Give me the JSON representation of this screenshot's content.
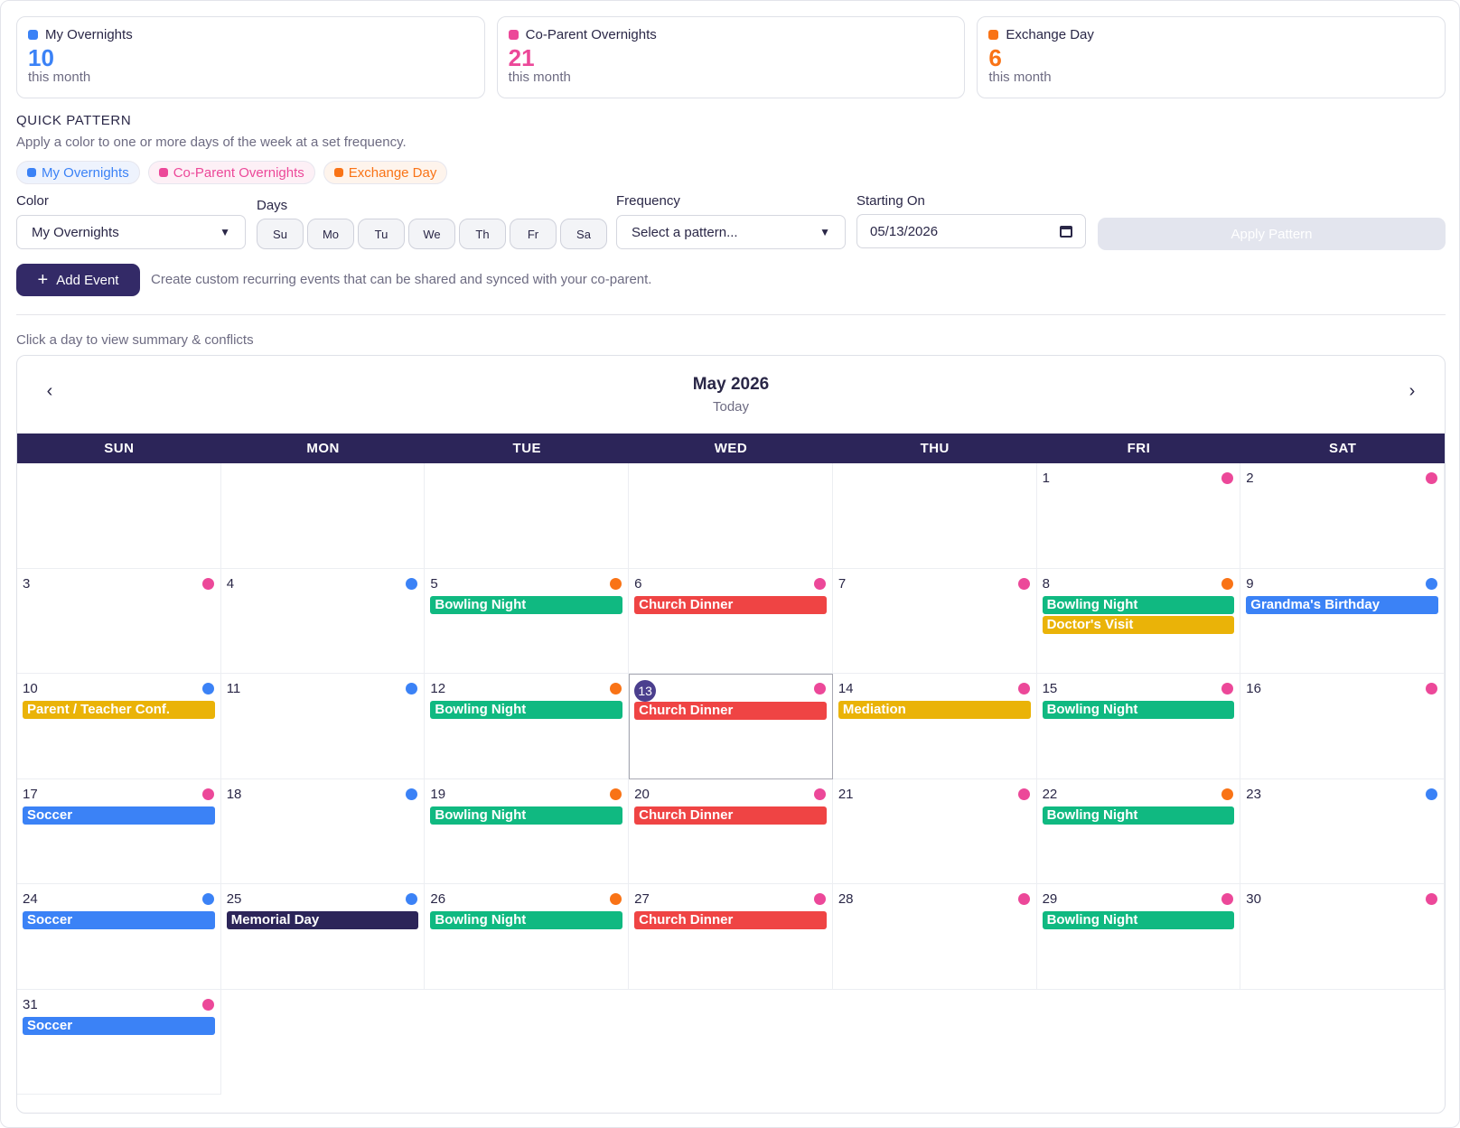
{
  "colors": {
    "my": "#3b82f6",
    "coparent": "#ec4899",
    "exchange": "#f97316",
    "bowling": "#10b981",
    "church": "#ef4444",
    "yellow": "#eab308",
    "navy": "#2c2559"
  },
  "stats": [
    {
      "label": "My Overnights",
      "value": "10",
      "sub": "this month",
      "color": "#3b82f6"
    },
    {
      "label": "Co-Parent Overnights",
      "value": "21",
      "sub": "this month",
      "color": "#ec4899"
    },
    {
      "label": "Exchange Day",
      "value": "6",
      "sub": "this month",
      "color": "#f97316"
    }
  ],
  "quick_pattern": {
    "title": "QUICK PATTERN",
    "description": "Apply a color to one or more days of the week at a set frequency.",
    "chips": [
      {
        "label": "My Overnights",
        "color": "#3b82f6",
        "bg": "#eef3fd"
      },
      {
        "label": "Co-Parent Overnights",
        "color": "#ec4899",
        "bg": "#fdf0f6"
      },
      {
        "label": "Exchange Day",
        "color": "#f97316",
        "bg": "#fef4ec"
      }
    ],
    "color_label": "Color",
    "color_value": "My Overnights",
    "days_label": "Days",
    "days": [
      "Su",
      "Mo",
      "Tu",
      "We",
      "Th",
      "Fr",
      "Sa"
    ],
    "frequency_label": "Frequency",
    "frequency_placeholder": "Select a pattern...",
    "starting_label": "Starting On",
    "starting_value": "05/13/2026",
    "apply_label": "Apply Pattern"
  },
  "add_event": {
    "label": "Add Event",
    "description": "Create custom recurring events that can be shared and synced with your co-parent."
  },
  "hint": "Click a day to view summary & conflicts",
  "calendar": {
    "month": "May 2026",
    "today_label": "Today",
    "weekdays": [
      "SUN",
      "MON",
      "TUE",
      "WED",
      "THU",
      "FRI",
      "SAT"
    ],
    "first_weekday": 5,
    "today": 13,
    "days": [
      {
        "d": 1,
        "dot": "#ec4899",
        "events": []
      },
      {
        "d": 2,
        "dot": "#ec4899",
        "events": []
      },
      {
        "d": 3,
        "dot": "#ec4899",
        "events": []
      },
      {
        "d": 4,
        "dot": "#3b82f6",
        "events": []
      },
      {
        "d": 5,
        "dot": "#f97316",
        "events": [
          {
            "t": "Bowling Night",
            "c": "#10b981"
          }
        ]
      },
      {
        "d": 6,
        "dot": "#ec4899",
        "events": [
          {
            "t": "Church Dinner",
            "c": "#ef4444"
          }
        ]
      },
      {
        "d": 7,
        "dot": "#ec4899",
        "events": []
      },
      {
        "d": 8,
        "dot": "#f97316",
        "events": [
          {
            "t": "Bowling Night",
            "c": "#10b981"
          },
          {
            "t": "Doctor's Visit",
            "c": "#eab308"
          }
        ]
      },
      {
        "d": 9,
        "dot": "#3b82f6",
        "events": [
          {
            "t": "Grandma's Birthday",
            "c": "#3b82f6"
          }
        ]
      },
      {
        "d": 10,
        "dot": "#3b82f6",
        "events": [
          {
            "t": "Parent / Teacher Conf.",
            "c": "#eab308"
          }
        ]
      },
      {
        "d": 11,
        "dot": "#3b82f6",
        "events": []
      },
      {
        "d": 12,
        "dot": "#f97316",
        "events": [
          {
            "t": "Bowling Night",
            "c": "#10b981"
          }
        ]
      },
      {
        "d": 13,
        "dot": "#ec4899",
        "events": [
          {
            "t": "Church Dinner",
            "c": "#ef4444"
          }
        ]
      },
      {
        "d": 14,
        "dot": "#ec4899",
        "events": [
          {
            "t": "Mediation",
            "c": "#eab308"
          }
        ]
      },
      {
        "d": 15,
        "dot": "#ec4899",
        "events": [
          {
            "t": "Bowling Night",
            "c": "#10b981"
          }
        ]
      },
      {
        "d": 16,
        "dot": "#ec4899",
        "events": []
      },
      {
        "d": 17,
        "dot": "#ec4899",
        "events": [
          {
            "t": "Soccer",
            "c": "#3b82f6"
          }
        ]
      },
      {
        "d": 18,
        "dot": "#3b82f6",
        "events": []
      },
      {
        "d": 19,
        "dot": "#f97316",
        "events": [
          {
            "t": "Bowling Night",
            "c": "#10b981"
          }
        ]
      },
      {
        "d": 20,
        "dot": "#ec4899",
        "events": [
          {
            "t": "Church Dinner",
            "c": "#ef4444"
          }
        ]
      },
      {
        "d": 21,
        "dot": "#ec4899",
        "events": []
      },
      {
        "d": 22,
        "dot": "#f97316",
        "events": [
          {
            "t": "Bowling Night",
            "c": "#10b981"
          }
        ]
      },
      {
        "d": 23,
        "dot": "#3b82f6",
        "events": []
      },
      {
        "d": 24,
        "dot": "#3b82f6",
        "events": [
          {
            "t": "Soccer",
            "c": "#3b82f6"
          }
        ]
      },
      {
        "d": 25,
        "dot": "#3b82f6",
        "events": [
          {
            "t": "Memorial Day",
            "c": "#2c2559"
          }
        ]
      },
      {
        "d": 26,
        "dot": "#f97316",
        "events": [
          {
            "t": "Bowling Night",
            "c": "#10b981"
          }
        ]
      },
      {
        "d": 27,
        "dot": "#ec4899",
        "events": [
          {
            "t": "Church Dinner",
            "c": "#ef4444"
          }
        ]
      },
      {
        "d": 28,
        "dot": "#ec4899",
        "events": []
      },
      {
        "d": 29,
        "dot": "#ec4899",
        "events": [
          {
            "t": "Bowling Night",
            "c": "#10b981"
          }
        ]
      },
      {
        "d": 30,
        "dot": "#ec4899",
        "events": []
      },
      {
        "d": 31,
        "dot": "#ec4899",
        "events": [
          {
            "t": "Soccer",
            "c": "#3b82f6"
          }
        ]
      }
    ]
  }
}
